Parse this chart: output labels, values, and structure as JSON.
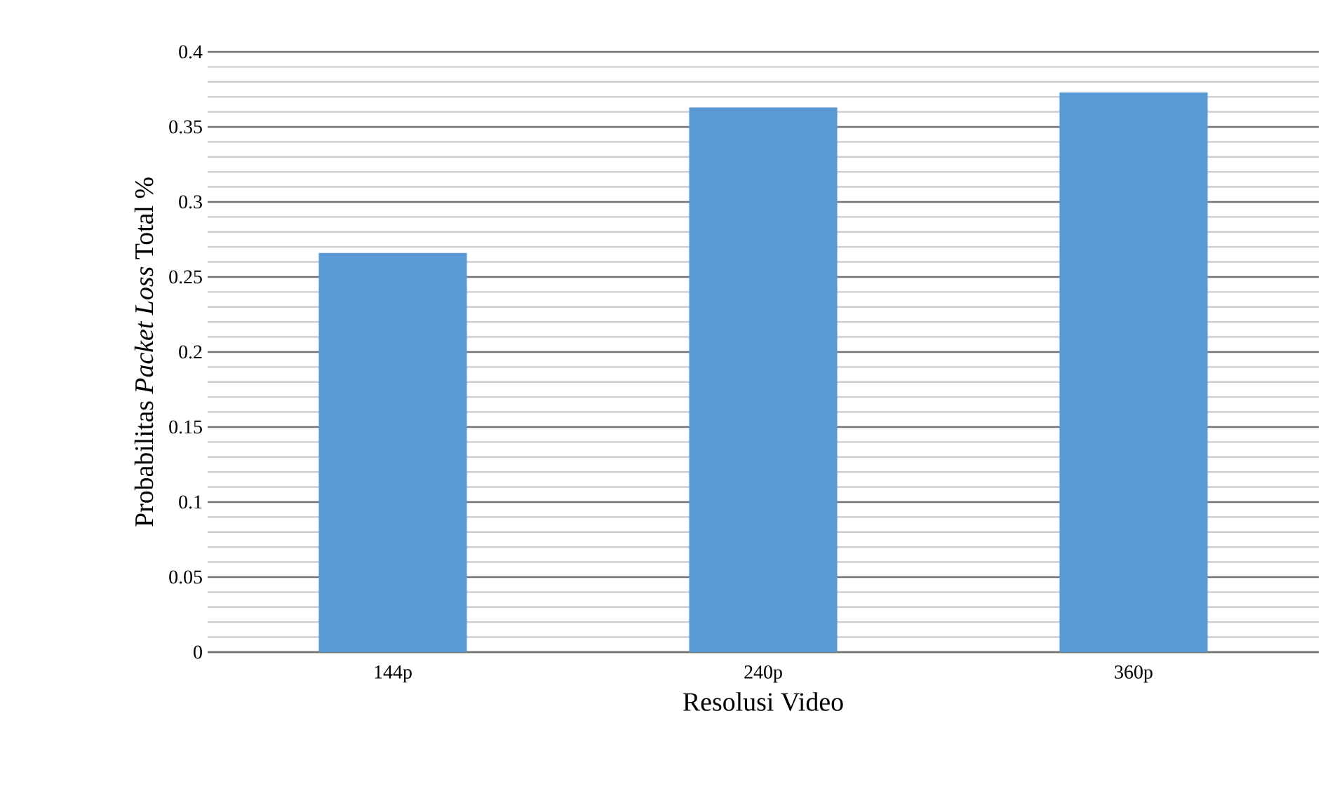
{
  "chart_data": {
    "type": "bar",
    "xlabel": "Resolusi Video",
    "ylabel": "Probabilitas *Packet Loss* Total %",
    "categories": [
      "144p",
      "240p",
      "360p"
    ],
    "values": [
      0.266,
      0.363,
      0.373
    ],
    "color": "#5b9bd5",
    "ylim": [
      0,
      0.4
    ],
    "yticks": [
      0,
      0.05,
      0.1,
      0.15,
      0.2,
      0.25,
      0.3,
      0.35,
      0.4
    ],
    "grid": "y"
  }
}
